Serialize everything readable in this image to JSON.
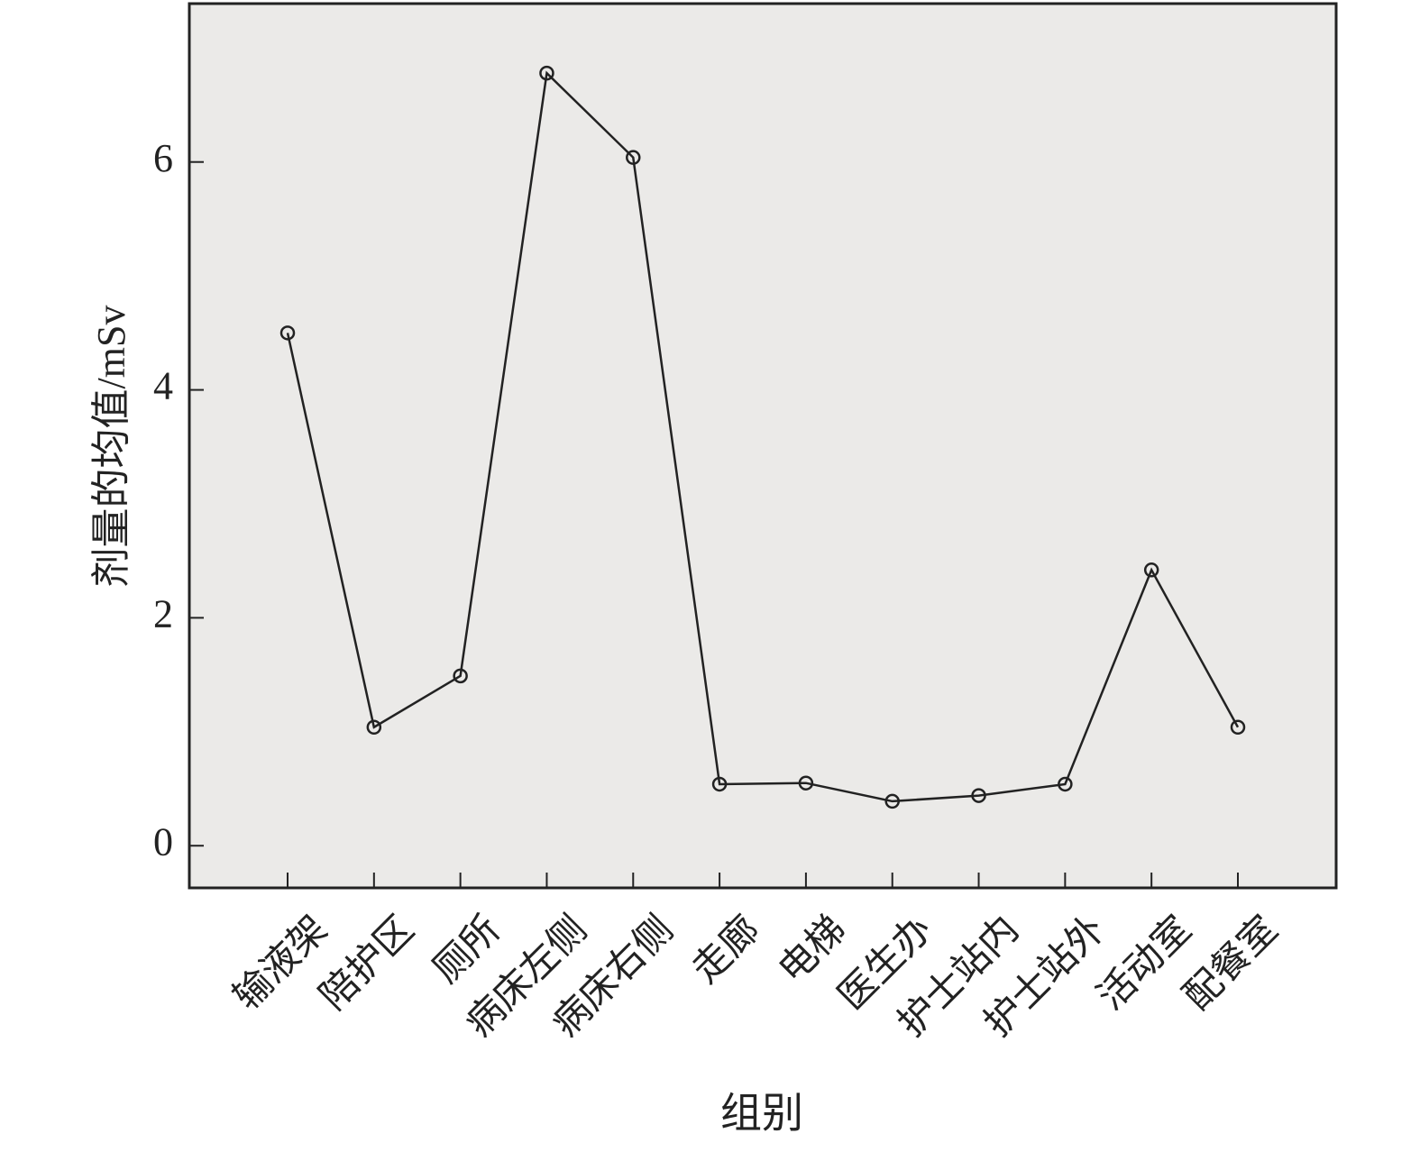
{
  "chart_data": {
    "type": "line",
    "x_label": "组别",
    "y_label": "剂量的均值/mSv",
    "categories": [
      "输液架",
      "陪护区",
      "厕所",
      "病床左侧",
      "病床右侧",
      "走廊",
      "电梯",
      "医生办",
      "护士站内",
      "护士站外",
      "活动室",
      "配餐室"
    ],
    "values": [
      4.5,
      1.04,
      1.49,
      6.78,
      6.04,
      0.54,
      0.55,
      0.39,
      0.44,
      0.54,
      2.42,
      1.04
    ],
    "color": "#222222",
    "ylim": [
      -0.37,
      7.39
    ],
    "yticks": [
      0,
      2,
      4,
      6
    ],
    "grid": false
  }
}
